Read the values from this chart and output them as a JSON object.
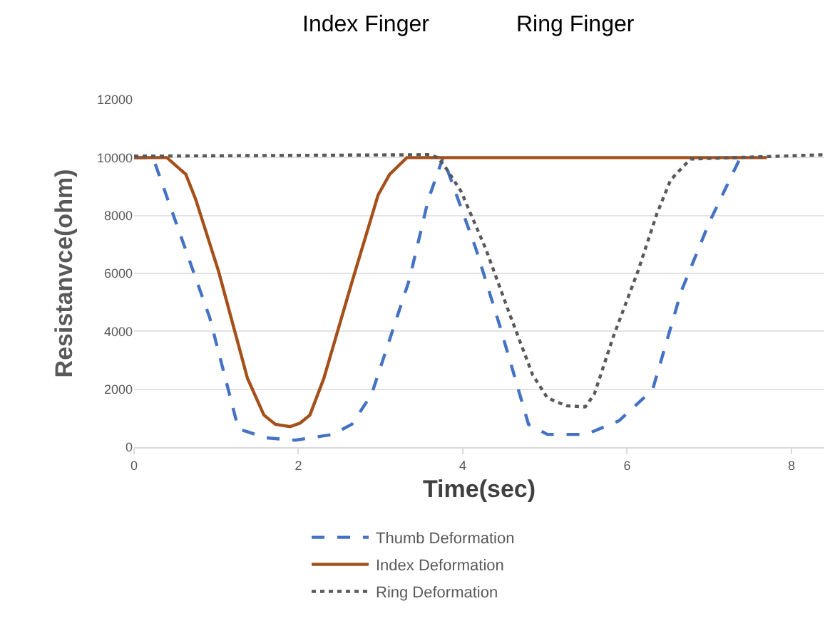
{
  "chart_data": {
    "type": "line",
    "xlabel": "Time(sec)",
    "ylabel": "Resistanvce(ohm)",
    "annotations": [
      "Index Finger",
      "Ring Finger"
    ],
    "xlim": [
      0,
      8.4
    ],
    "xticks": [
      0,
      2,
      4,
      6,
      8
    ],
    "ylim": [
      0,
      12000
    ],
    "yticks": [
      0,
      2000,
      4000,
      6000,
      8000,
      10000,
      12000
    ],
    "grid": "y",
    "legend": "bottom",
    "marker": "none",
    "series": [
      {
        "name": "Thumb Deformation",
        "color": "#4472c4",
        "line_style": "dashed",
        "x": [
          0,
          0.23,
          0.92,
          1.27,
          1.61,
          1.96,
          2.42,
          2.65,
          2.89,
          3.35,
          3.58,
          3.76,
          4.16,
          4.45,
          4.8,
          5.03,
          5.5,
          5.9,
          6.31,
          6.66,
          7.0,
          7.37
        ],
        "values": [
          10000,
          10000,
          4480,
          630,
          320,
          240,
          440,
          790,
          1820,
          5780,
          8550,
          10000,
          6850,
          4200,
          790,
          440,
          440,
          910,
          1980,
          5390,
          7760,
          9950
        ]
      },
      {
        "name": "Index Deformation",
        "color": "#a5501b",
        "line_style": "solid",
        "x": [
          0,
          0.4,
          0.63,
          0.75,
          1.03,
          1.38,
          1.58,
          1.72,
          1.9,
          2.02,
          2.14,
          2.31,
          2.66,
          2.97,
          3.11,
          3.32,
          7.7
        ],
        "values": [
          10000,
          10000,
          9420,
          8560,
          6060,
          2380,
          1110,
          790,
          710,
          830,
          1110,
          2380,
          5780,
          8710,
          9420,
          10000,
          10000
        ]
      },
      {
        "name": "Ring Deformation",
        "color": "#595959",
        "line_style": "dotted",
        "x": [
          0,
          3.6,
          3.7,
          3.8,
          3.98,
          4.28,
          4.57,
          4.85,
          5.03,
          5.26,
          5.49,
          5.6,
          5.83,
          6.13,
          6.36,
          6.53,
          6.77,
          8.4
        ],
        "values": [
          10050,
          10100,
          10000,
          9620,
          8830,
          6850,
          4600,
          2500,
          1700,
          1430,
          1390,
          1820,
          3800,
          6060,
          8040,
          9230,
          9950,
          10100
        ]
      }
    ]
  }
}
